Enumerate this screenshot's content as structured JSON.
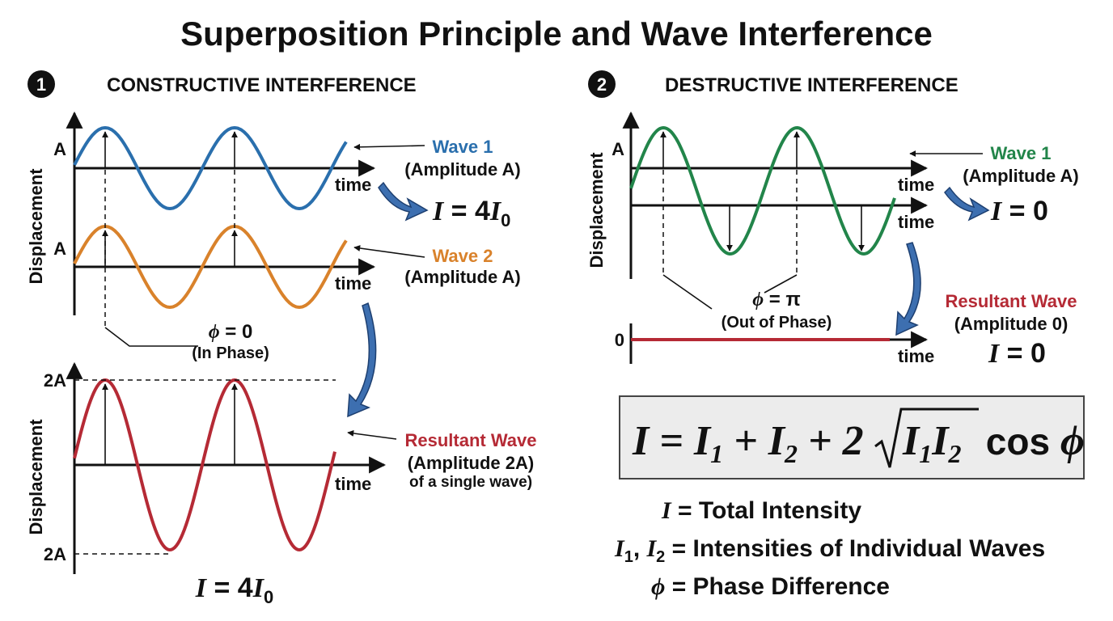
{
  "title": "Superposition Principle and Wave Interference",
  "constructive": {
    "number": "1",
    "heading": "CONSTRUCTIVE INTERFERENCE",
    "y_label_top": "Displacement",
    "y_label_bottom": "Displacement",
    "tick_wave1": "A",
    "tick_wave2": "A",
    "time_labels": [
      "time",
      "time",
      "time"
    ],
    "wave1": {
      "name": "Wave 1",
      "amplitude": "(Amplitude A)"
    },
    "wave2": {
      "name": "Wave 2",
      "amplitude": "(Amplitude A)"
    },
    "intensity_right": [
      "I",
      " = 4",
      "I",
      "0"
    ],
    "phase": [
      "ϕ",
      " = 0"
    ],
    "phase_note": "(In Phase)",
    "tick_2a_top": "2A",
    "tick_2a_bottom": "2A",
    "resultant": {
      "name": "Resultant Wave",
      "amplitude": "(Amplitude 2A)",
      "note": "of a single wave)"
    },
    "intensity_bottom": [
      "I",
      " = 4",
      "I",
      "0"
    ]
  },
  "destructive": {
    "number": "2",
    "heading": "DESTRUCTIVE INTERFERENCE",
    "y_label": "Displacement",
    "tick_wave": "A",
    "tick_zero": "0",
    "time_labels": [
      "time",
      "time",
      "time"
    ],
    "wave1": {
      "name": "Wave 1",
      "amplitude": "(Amplitude A)"
    },
    "intensity_right": [
      "I",
      " = 0"
    ],
    "phase": [
      "ϕ",
      " = π"
    ],
    "phase_note": "(Out of Phase)",
    "resultant": {
      "name": "Resultant Wave",
      "amplitude": "(Amplitude 0)"
    },
    "intensity_bottom": [
      "I",
      " = 0"
    ]
  },
  "formula": {
    "left": [
      "I",
      " = ",
      "I",
      "1",
      " + ",
      "I",
      "2",
      " + 2"
    ],
    "radicand": [
      "I",
      "1",
      "I",
      "2"
    ],
    "right": [
      " cos ",
      "ϕ"
    ]
  },
  "legend": [
    [
      "I",
      " = Total Intensity"
    ],
    [
      "I",
      "1",
      ", ",
      "I",
      "2",
      " = Intensities of Individual Waves"
    ],
    [
      "ϕ",
      " = Phase Difference"
    ]
  ]
}
